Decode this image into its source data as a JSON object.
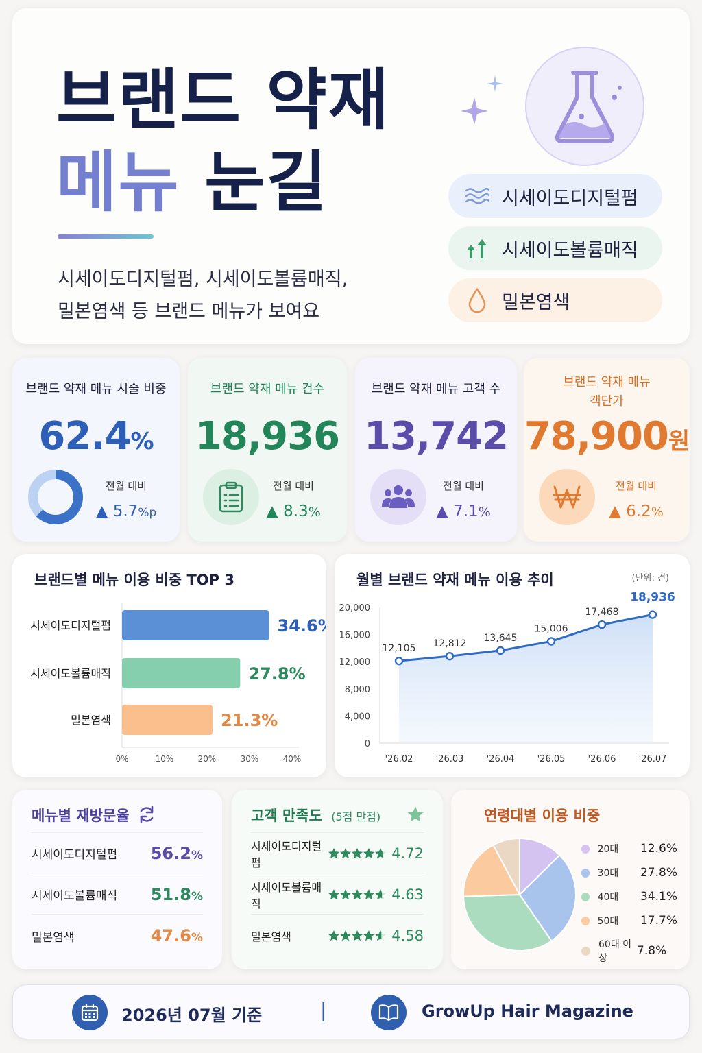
{
  "hero": {
    "title_line1": "브랜드 약재",
    "title_line2_a": "메뉴",
    "title_line2_b": "눈길",
    "subtitle_line1": "시세이도디지털펌, 시세이도볼륨매직,",
    "subtitle_line2": "밀본염색 등 브랜드 메뉴가 보여요",
    "icon": "flask-icon",
    "pills": [
      {
        "label": "시세이도디지털펌",
        "icon": "wave-icon",
        "bg": "#eaf0fb",
        "color": "#7d9ad6"
      },
      {
        "label": "시세이도볼륨매직",
        "icon": "arrows-up-icon",
        "bg": "#e9f5ee",
        "color": "#3f9a6a"
      },
      {
        "label": "밀본염색",
        "icon": "drop-icon",
        "bg": "#fdf0e4",
        "color": "#e0965a"
      }
    ]
  },
  "kpis": [
    {
      "title": "브랜드 약재 메뉴 시술 비중",
      "value": "62.4",
      "unit": "%",
      "compare_label": "전월 대비",
      "change": "▲ 5.7",
      "change_unit": "%p",
      "color": "#2e5fb8",
      "bg": "#f3f6fd",
      "icon": "donut-icon",
      "share": 62.4
    },
    {
      "title": "브랜드 약재 메뉴 건수",
      "value": "18,936",
      "unit": "",
      "compare_label": "전월 대비",
      "change": "▲ 8.3",
      "change_unit": "%",
      "color": "#23855a",
      "bg": "#f1f8f3",
      "icon": "clipboard-icon"
    },
    {
      "title": "브랜드 약재 메뉴 고객 수",
      "value": "13,742",
      "unit": "",
      "compare_label": "전월 대비",
      "change": "▲ 7.1",
      "change_unit": "%",
      "color": "#5a4ca8",
      "bg": "#f5f3fc",
      "icon": "users-icon"
    },
    {
      "title": "브랜드 약재 메뉴\n객단가",
      "value": "78,900",
      "unit": "원",
      "compare_label": "전월 대비",
      "change": "▲ 6.2",
      "change_unit": "%",
      "color": "#e07a30",
      "bg": "#fdf6ef",
      "icon": "won-icon"
    }
  ],
  "chart_data": [
    {
      "type": "bar",
      "title": "브랜드별 메뉴 이용 비중 TOP 3",
      "orientation": "horizontal",
      "categories": [
        "시세이도디지털펌",
        "시세이도볼륨매직",
        "밀본염색"
      ],
      "values": [
        34.6,
        27.8,
        21.3
      ],
      "value_labels": [
        "34.6%",
        "27.8%",
        "21.3%"
      ],
      "colors": [
        "#5b8fd6",
        "#86cfae",
        "#fbbf8e"
      ],
      "label_colors": [
        "#2e5fb8",
        "#2e8a5e",
        "#e08a45"
      ],
      "xlim": [
        0,
        40
      ],
      "xticks": [
        "0%",
        "10%",
        "20%",
        "30%",
        "40%"
      ]
    },
    {
      "type": "area",
      "title": "월별 브랜드 약재 메뉴 이용 추이",
      "unit_note": "(단위: 건)",
      "categories": [
        "'26.02",
        "'26.03",
        "'26.04",
        "'26.05",
        "'26.06",
        "'26.07"
      ],
      "values": [
        12105,
        12812,
        13645,
        15006,
        17468,
        18936
      ],
      "value_labels": [
        "12,105",
        "12,812",
        "13,645",
        "15,006",
        "17,468",
        "18,936"
      ],
      "ylim": [
        0,
        20000
      ],
      "yticks": [
        "0",
        "4,000",
        "8,000",
        "12,000",
        "16,000",
        "20,000"
      ],
      "color": "#2e6bc4"
    },
    {
      "type": "pie",
      "title": "연령대별 이용 비중",
      "labels": [
        "20대",
        "30대",
        "40대",
        "50대",
        "60대 이상"
      ],
      "values": [
        12.6,
        27.8,
        34.1,
        17.7,
        7.8
      ],
      "value_labels": [
        "12.6%",
        "27.8%",
        "34.1%",
        "17.7%",
        "7.8%"
      ],
      "colors": [
        "#d4c2f0",
        "#a9c4ec",
        "#acdcc0",
        "#fbcb9f",
        "#ead8c4"
      ]
    }
  ],
  "revisit": {
    "title": "메뉴별 재방문율",
    "icon": "refresh-icon",
    "rows": [
      {
        "name": "시세이도디지털펌",
        "value": "56.2",
        "unit": "%",
        "color": "#5a4ca8"
      },
      {
        "name": "시세이도볼륨매직",
        "value": "51.8",
        "unit": "%",
        "color": "#2e8a5e"
      },
      {
        "name": "밀본염색",
        "value": "47.6",
        "unit": "%",
        "color": "#e08a45"
      }
    ]
  },
  "satisfaction": {
    "title": "고객 만족도",
    "subtitle": "(5점 만점)",
    "icon": "star-icon",
    "rows": [
      {
        "name": "시세이도디지털펌",
        "score": "4.72",
        "rating": 4.72
      },
      {
        "name": "시세이도볼륨매직",
        "score": "4.63",
        "rating": 4.63
      },
      {
        "name": "밀본염색",
        "score": "4.58",
        "rating": 4.58
      }
    ]
  },
  "footer": {
    "date": "2026년 07월 기준",
    "date_icon": "calendar-icon",
    "separator": "|",
    "source": "GrowUp Hair Magazine",
    "source_icon": "book-icon"
  }
}
